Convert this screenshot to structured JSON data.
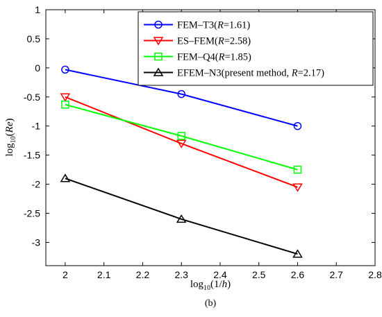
{
  "chart_data": {
    "type": "line",
    "panel_label": "(b)",
    "xlabel": {
      "pre": "log",
      "sub": "10",
      "post_open": "(1/",
      "var": "h",
      "post_close": ")"
    },
    "ylabel": {
      "pre": "log",
      "sub": "10",
      "post_open": "(",
      "var": "Re",
      "post_close": ")"
    },
    "xlim": [
      1.95,
      2.8
    ],
    "ylim": [
      -3.4,
      1
    ],
    "x_ticks": [
      "2",
      "2.1",
      "2.2",
      "2.3",
      "2.4",
      "2.5",
      "2.6",
      "2.7",
      "2.8"
    ],
    "x_tick_values": [
      2.0,
      2.1,
      2.2,
      2.3,
      2.4,
      2.5,
      2.6,
      2.7,
      2.8
    ],
    "y_ticks": [
      "1",
      "0.5",
      "0",
      "-0.5",
      "-1",
      "-1.5",
      "-2",
      "-2.5",
      "-3"
    ],
    "y_tick_values": [
      1,
      0.5,
      0,
      -0.5,
      -1,
      -1.5,
      -2,
      -2.5,
      -3
    ],
    "grid": false,
    "legend_position": "top-right",
    "series": [
      {
        "name_prefix": "FEM–T3(",
        "name_var": "R",
        "name_suffix": "=1.61)",
        "color": "#0000ff",
        "marker": "circle",
        "x": [
          2.0,
          2.3,
          2.6
        ],
        "y": [
          -0.03,
          -0.45,
          -1.0
        ]
      },
      {
        "name_prefix": "ES–FEM(",
        "name_var": "R",
        "name_suffix": "=2.58)",
        "color": "#ff0000",
        "marker": "triangle-down",
        "x": [
          2.0,
          2.3,
          2.6
        ],
        "y": [
          -0.5,
          -1.3,
          -2.05
        ]
      },
      {
        "name_prefix": "FEM–Q4(",
        "name_var": "R",
        "name_suffix": "=1.85)",
        "color": "#00ff00",
        "marker": "square",
        "x": [
          2.0,
          2.3,
          2.6
        ],
        "y": [
          -0.63,
          -1.17,
          -1.75
        ]
      },
      {
        "name_prefix": "EFEM–N3(present method, ",
        "name_var": "R",
        "name_suffix": "=2.17)",
        "color": "#000000",
        "marker": "triangle-up",
        "x": [
          2.0,
          2.3,
          2.6
        ],
        "y": [
          -1.9,
          -2.6,
          -3.2
        ]
      }
    ]
  }
}
